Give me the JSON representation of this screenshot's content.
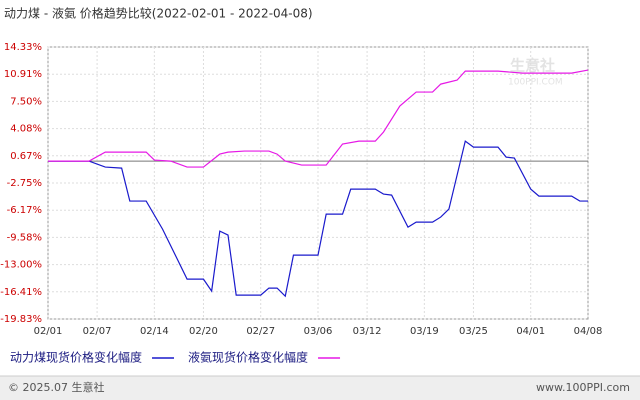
{
  "chart_data": {
    "type": "line",
    "title": "动力煤 - 液氨 价格趋势比较(2022-02-01 - 2022-04-08)",
    "xlim": [
      "02/01",
      "04/08"
    ],
    "xticks": [
      "02/01",
      "02/07",
      "02/14",
      "02/20",
      "02/27",
      "03/06",
      "03/12",
      "03/19",
      "03/25",
      "04/01",
      "04/08"
    ],
    "ylim": [
      -19.83,
      14.33
    ],
    "yticks": [
      {
        "value": 14.33,
        "label": "14.33%"
      },
      {
        "value": 10.91,
        "label": "10.91%"
      },
      {
        "value": 7.5,
        "label": "7.50%"
      },
      {
        "value": 4.08,
        "label": "4.08%"
      },
      {
        "value": 0.67,
        "label": "0.67%"
      },
      {
        "value": -2.75,
        "label": "-2.75%"
      },
      {
        "value": -6.17,
        "label": "-6.17%"
      },
      {
        "value": -9.58,
        "label": "-9.58%"
      },
      {
        "value": -13.0,
        "label": "-13.00%"
      },
      {
        "value": -16.41,
        "label": "-16.41%"
      },
      {
        "value": -19.83,
        "label": "-19.83%"
      }
    ],
    "grid": true,
    "series": [
      {
        "name": "动力煤现货价格变化幅度",
        "color": "#1a1acc",
        "x": [
          "02/01",
          "02/06",
          "02/08",
          "02/10",
          "02/11",
          "02/13",
          "02/15",
          "02/18",
          "02/20",
          "02/21",
          "02/22",
          "02/23",
          "02/24",
          "02/27",
          "02/28",
          "03/01",
          "03/02",
          "03/03",
          "03/06",
          "03/07",
          "03/09",
          "03/10",
          "03/13",
          "03/14",
          "03/15",
          "03/17",
          "03/18",
          "03/20",
          "03/21",
          "03/22",
          "03/24",
          "03/25",
          "03/28",
          "03/29",
          "03/30",
          "04/01",
          "04/02",
          "04/06",
          "04/07",
          "04/08"
        ],
        "values": [
          0,
          0,
          -0.75,
          -0.88,
          -5.02,
          -5.02,
          -8.54,
          -14.82,
          -14.82,
          -16.33,
          -8.79,
          -9.29,
          -16.83,
          -16.83,
          -15.95,
          -15.95,
          -16.96,
          -11.81,
          -11.81,
          -6.66,
          -6.66,
          -3.52,
          -3.52,
          -4.14,
          -4.27,
          -8.29,
          -7.66,
          -7.66,
          -7.03,
          -6.03,
          2.51,
          1.76,
          1.76,
          0.5,
          0.38,
          -3.52,
          -4.4,
          -4.4,
          -5.02,
          -5.02
        ]
      },
      {
        "name": "液氨现货价格变化幅度",
        "color": "#e619e6",
        "x": [
          "02/01",
          "02/06",
          "02/08",
          "02/13",
          "02/14",
          "02/16",
          "02/18",
          "02/20",
          "02/22",
          "02/23",
          "02/25",
          "02/28",
          "03/01",
          "03/02",
          "03/04",
          "03/07",
          "03/09",
          "03/11",
          "03/13",
          "03/14",
          "03/16",
          "03/18",
          "03/20",
          "03/21",
          "03/23",
          "03/24",
          "03/28",
          "03/31",
          "04/06",
          "04/08"
        ],
        "values": [
          0,
          0,
          1.13,
          1.13,
          0.13,
          0,
          -0.75,
          -0.75,
          0.88,
          1.13,
          1.26,
          1.26,
          0.88,
          0,
          -0.5,
          -0.5,
          2.14,
          2.51,
          2.51,
          3.64,
          6.91,
          8.67,
          8.67,
          9.67,
          10.17,
          11.3,
          11.3,
          11.05,
          11.05,
          11.43
        ]
      }
    ],
    "watermark": [
      "生意社",
      "100PPI.COM"
    ],
    "footer": {
      "left": "© 2025.07 生意社",
      "right": "www.100PPI.com"
    }
  }
}
